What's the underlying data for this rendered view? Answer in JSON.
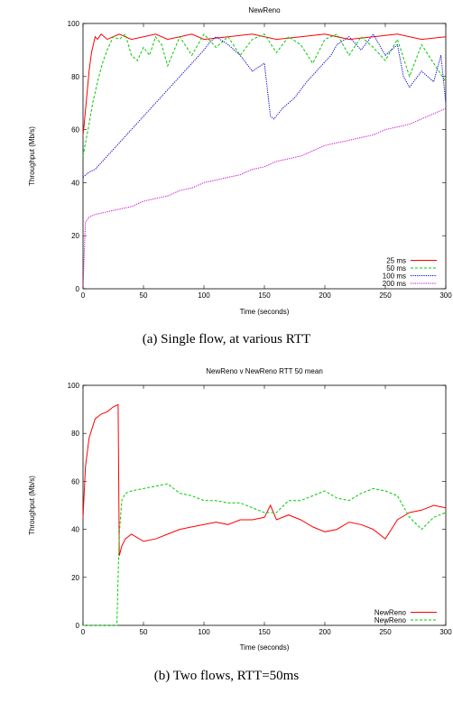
{
  "chart_data": [
    {
      "type": "line",
      "title": "NewReno",
      "xlabel": "Time (seconds)",
      "ylabel": "Throughput (Mb/s)",
      "caption": "(a)  Single flow, at various RTT",
      "xlim": [
        0,
        300
      ],
      "ylim": [
        0,
        100
      ],
      "xticks": [
        0,
        50,
        100,
        150,
        200,
        250,
        300
      ],
      "yticks": [
        0,
        20,
        40,
        60,
        80,
        100
      ],
      "grid": false,
      "legend_position": "bottom-right",
      "series": [
        {
          "name": "25 ms",
          "color": "#ff0000",
          "dash": "solid",
          "x": [
            0,
            1,
            3,
            5,
            7,
            9,
            10,
            12,
            15,
            20,
            25,
            30,
            40,
            50,
            60,
            70,
            80,
            90,
            100,
            120,
            140,
            160,
            180,
            200,
            220,
            240,
            260,
            280,
            300
          ],
          "y": [
            58,
            62,
            72,
            82,
            89,
            93,
            95,
            94,
            96,
            94,
            95,
            96,
            94,
            95,
            96,
            94,
            95,
            96,
            94,
            95,
            96,
            94,
            95,
            96,
            94,
            95,
            96,
            94,
            95
          ]
        },
        {
          "name": "50 ms",
          "color": "#00cc00",
          "dash": "dashed",
          "x": [
            0,
            2,
            5,
            8,
            12,
            16,
            20,
            25,
            30,
            35,
            40,
            45,
            50,
            55,
            60,
            65,
            70,
            80,
            90,
            100,
            110,
            120,
            130,
            140,
            150,
            160,
            170,
            180,
            190,
            200,
            210,
            220,
            230,
            240,
            250,
            260,
            270,
            280,
            290,
            300
          ],
          "y": [
            50,
            55,
            62,
            70,
            78,
            85,
            90,
            95,
            94,
            96,
            88,
            86,
            91,
            88,
            95,
            92,
            84,
            95,
            88,
            96,
            91,
            95,
            88,
            94,
            96,
            89,
            95,
            92,
            85,
            94,
            96,
            88,
            95,
            91,
            86,
            94,
            80,
            92,
            85,
            78
          ]
        },
        {
          "name": "100 ms",
          "color": "#0000cc",
          "dash": "dotted",
          "x": [
            0,
            5,
            10,
            20,
            30,
            40,
            50,
            60,
            70,
            80,
            90,
            100,
            105,
            110,
            120,
            130,
            140,
            150,
            155,
            158,
            165,
            175,
            185,
            195,
            205,
            210,
            220,
            230,
            240,
            250,
            260,
            265,
            270,
            280,
            290,
            296,
            300
          ],
          "y": [
            42,
            44,
            45,
            50,
            55,
            60,
            65,
            70,
            75,
            80,
            85,
            90,
            93,
            95,
            92,
            88,
            82,
            85,
            65,
            64,
            68,
            72,
            78,
            83,
            88,
            92,
            95,
            90,
            96,
            88,
            92,
            80,
            76,
            82,
            78,
            88,
            70
          ]
        },
        {
          "name": "200 ms",
          "color": "#cc00cc",
          "dash": "dotted",
          "x": [
            0,
            2,
            5,
            10,
            20,
            30,
            40,
            50,
            60,
            70,
            80,
            90,
            100,
            110,
            120,
            130,
            140,
            150,
            160,
            170,
            180,
            190,
            200,
            210,
            220,
            230,
            240,
            250,
            260,
            270,
            280,
            290,
            300
          ],
          "y": [
            1,
            25,
            27,
            28,
            29,
            30,
            31,
            33,
            34,
            35,
            37,
            38,
            40,
            41,
            42,
            43,
            45,
            46,
            48,
            49,
            50,
            52,
            54,
            55,
            56,
            57,
            58,
            60,
            61,
            62,
            64,
            66,
            68
          ]
        }
      ]
    },
    {
      "type": "line",
      "title": "NewReno v NewReno RTT 50 mean",
      "xlabel": "Time (seconds)",
      "ylabel": "Throughput (Mb/s)",
      "caption": "(b)  Two flows, RTT=50ms",
      "xlim": [
        0,
        300
      ],
      "ylim": [
        0,
        100
      ],
      "xticks": [
        0,
        50,
        100,
        150,
        200,
        250,
        300
      ],
      "yticks": [
        0,
        20,
        40,
        60,
        80,
        100
      ],
      "grid": false,
      "legend_position": "bottom-right",
      "series": [
        {
          "name": "NewReno",
          "color": "#ff0000",
          "dash": "solid",
          "x": [
            0,
            2,
            5,
            10,
            15,
            20,
            25,
            29,
            30,
            32,
            35,
            40,
            50,
            60,
            70,
            80,
            90,
            100,
            110,
            120,
            130,
            140,
            150,
            155,
            160,
            170,
            180,
            190,
            200,
            210,
            220,
            230,
            240,
            250,
            260,
            270,
            280,
            290,
            300
          ],
          "y": [
            45,
            66,
            78,
            86,
            88,
            89,
            91,
            92,
            29,
            33,
            36,
            38,
            35,
            36,
            38,
            40,
            41,
            42,
            43,
            42,
            44,
            44,
            45,
            50,
            44,
            46,
            44,
            41,
            39,
            40,
            43,
            42,
            40,
            36,
            44,
            47,
            48,
            50,
            49
          ]
        },
        {
          "name": "NewReno",
          "color": "#00cc00",
          "dash": "dashed",
          "x": [
            0,
            10,
            20,
            28,
            29,
            30,
            32,
            35,
            40,
            50,
            60,
            70,
            80,
            90,
            100,
            110,
            120,
            130,
            140,
            150,
            160,
            170,
            180,
            190,
            200,
            210,
            220,
            230,
            240,
            250,
            260,
            270,
            280,
            290,
            300
          ],
          "y": [
            0,
            0,
            0,
            0,
            20,
            38,
            52,
            55,
            56,
            57,
            58,
            59,
            55,
            54,
            52,
            52,
            51,
            51,
            49,
            47,
            47,
            52,
            52,
            54,
            56,
            53,
            52,
            55,
            57,
            56,
            54,
            45,
            40,
            45,
            47
          ]
        }
      ]
    }
  ]
}
